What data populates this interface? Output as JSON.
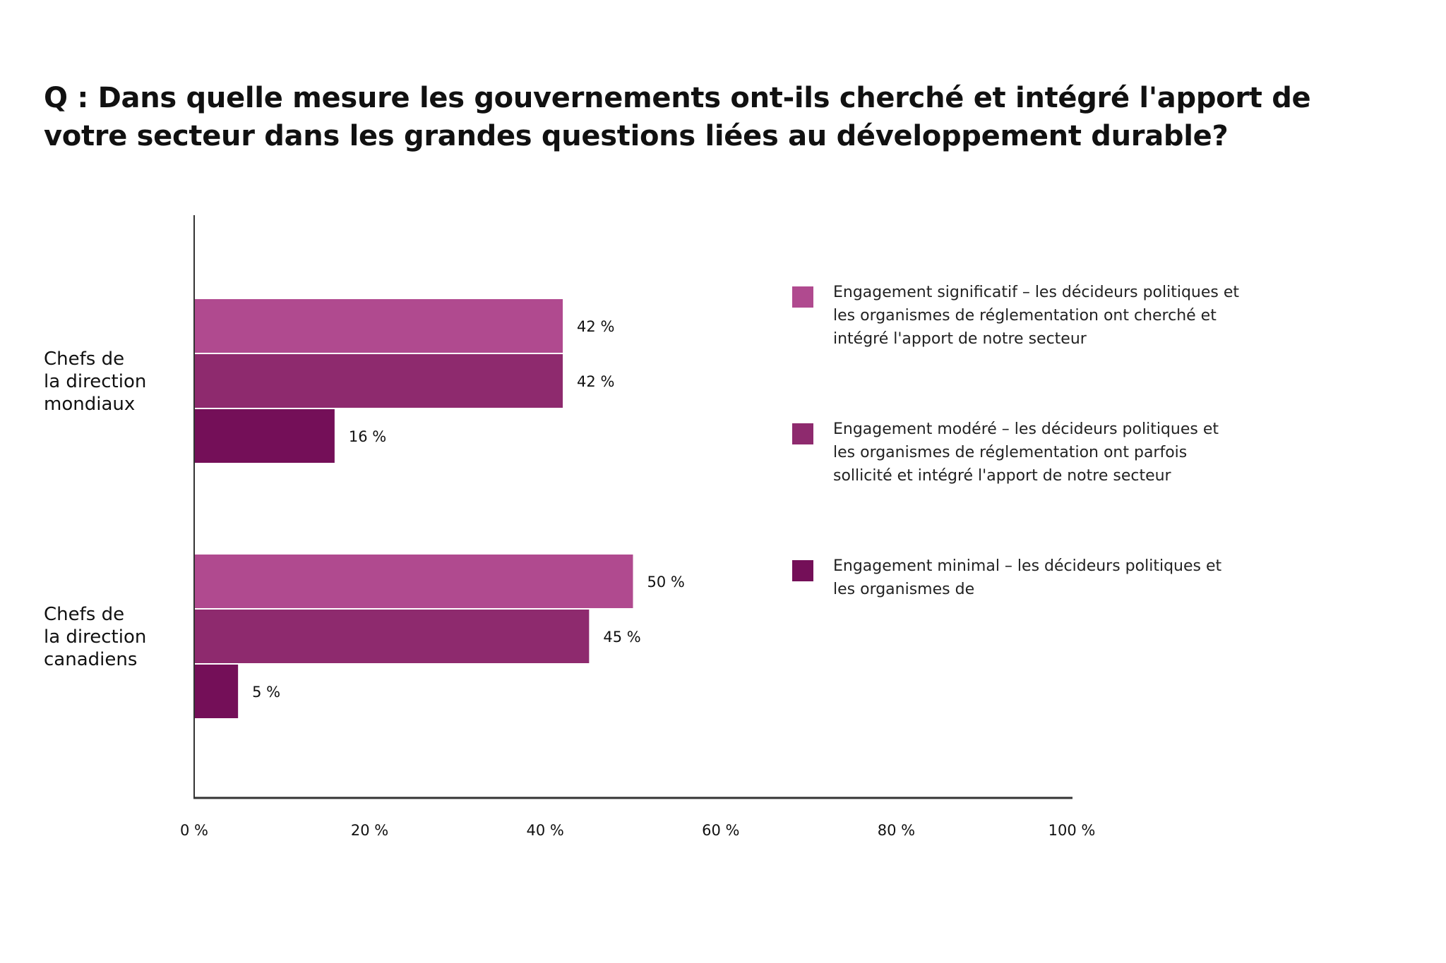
{
  "title": "Q : Dans quelle mesure les gouvernements ont-ils cherché et intégré l'apport de votre secteur dans les grandes questions liées au développement durable?",
  "colors": {
    "significatif": "#b04a8f",
    "modere": "#8e2a6e",
    "minimal": "#740f58",
    "axis": "#333333"
  },
  "legend": [
    {
      "label": "Engagement significatif – les décideurs politiques et les organismes de réglementation ont cherché et intégré l'apport de notre secteur",
      "color": "#b04a8f"
    },
    {
      "label": "Engagement modéré – les décideurs politiques et les organismes de réglementation ont parfois sollicité et intégré l'apport de notre secteur",
      "color": "#8e2a6e"
    },
    {
      "label": "Engagement minimal – les décideurs politiques et les organismes de",
      "color": "#740f58"
    }
  ],
  "chart_data": {
    "type": "bar",
    "orientation": "horizontal",
    "title": "Q : Dans quelle mesure les gouvernements ont-ils cherché et intégré l'apport de votre secteur dans les grandes questions liées au développement durable?",
    "categories": [
      [
        "Chefs de",
        "la direction",
        "mondiaux"
      ],
      [
        "Chefs de",
        "la direction",
        "canadiens"
      ]
    ],
    "series": [
      {
        "name": "Engagement significatif",
        "color": "#b04a8f",
        "values": [
          42,
          50
        ],
        "labels": [
          "42 %",
          "50 %"
        ]
      },
      {
        "name": "Engagement modéré",
        "color": "#8e2a6e",
        "values": [
          42,
          45
        ],
        "labels": [
          "42 %",
          "45 %"
        ]
      },
      {
        "name": "Engagement minimal",
        "color": "#740f58",
        "values": [
          16,
          5
        ],
        "labels": [
          "16 %",
          "5 %"
        ]
      }
    ],
    "xlim": [
      0,
      100
    ],
    "xticks": [
      0,
      20,
      40,
      60,
      80,
      100
    ],
    "xtick_labels": [
      "0 %",
      "20 %",
      "40 %",
      "60 %",
      "80 %",
      "100 %"
    ],
    "xlabel": "",
    "ylabel": "",
    "grid": false,
    "legend_position": "right"
  }
}
